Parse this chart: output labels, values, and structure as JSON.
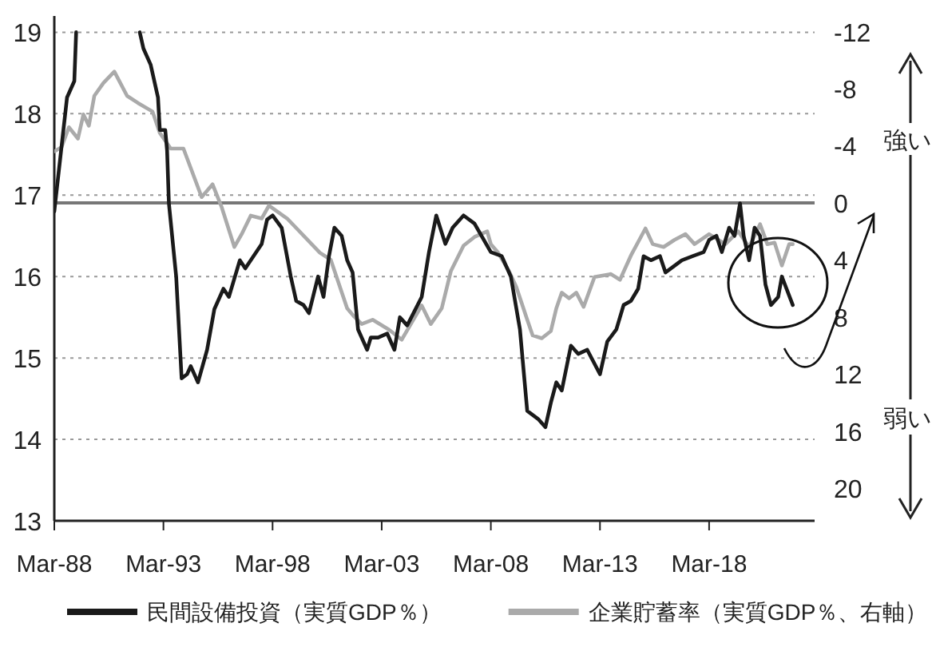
{
  "chart_data": {
    "type": "line",
    "xlim": [
      "1988-03",
      "2023-01"
    ],
    "xticks": [
      {
        "value": "1988-03",
        "label": "Mar-88"
      },
      {
        "value": "1993-03",
        "label": "Mar-93"
      },
      {
        "value": "1998-03",
        "label": "Mar-98"
      },
      {
        "value": "2003-03",
        "label": "Mar-03"
      },
      {
        "value": "2008-03",
        "label": "Mar-08"
      },
      {
        "value": "2013-03",
        "label": "Mar-13"
      },
      {
        "value": "2018-03",
        "label": "Mar-18"
      }
    ],
    "ylim": [
      13,
      19.2
    ],
    "yticks": [
      13,
      14,
      15,
      16,
      17,
      18,
      19
    ],
    "y2lim": [
      22.3,
      -13.1
    ],
    "y2ticks": [
      -12,
      -8,
      -4,
      0,
      4,
      8,
      12,
      16,
      20
    ],
    "grid": "y",
    "legend": "bottom",
    "ref_lines": [
      {
        "axis": "y2",
        "value": 0,
        "color": "#777777"
      }
    ],
    "annotations": [
      "強い",
      "弱い"
    ],
    "series": [
      {
        "name": "民間設備投資（実質GDP％）",
        "color": "#1a1a1a",
        "x": [
          "1988-03",
          "1988-05",
          "1988-10",
          "1989-02",
          "1989-03",
          "1990-06",
          "1992-02",
          "1992-04",
          "1992-08",
          "1992-12",
          "1993-01",
          "1993-04",
          "1993-05",
          "1993-06",
          "1993-10",
          "1994-01",
          "1994-04",
          "1994-06",
          "1994-10",
          "1995-03",
          "1995-07",
          "1995-12",
          "1996-03",
          "1996-09",
          "1996-12",
          "1997-09",
          "1997-12",
          "1998-03",
          "1998-08",
          "1999-01",
          "1999-04",
          "1999-08",
          "1999-11",
          "2000-04",
          "2000-07",
          "2000-10",
          "2001-01",
          "2001-05",
          "2001-08",
          "2001-11",
          "2002-02",
          "2002-07",
          "2002-09",
          "2003-01",
          "2003-06",
          "2003-10",
          "2004-01",
          "2004-05",
          "2005-01",
          "2005-05",
          "2005-09",
          "2006-02",
          "2006-06",
          "2006-12",
          "2007-06",
          "2008-03",
          "2008-09",
          "2009-02",
          "2009-07",
          "2009-11",
          "2010-05",
          "2010-09",
          "2010-12",
          "2011-03",
          "2011-06",
          "2011-11",
          "2012-03",
          "2012-08",
          "2013-03",
          "2013-07",
          "2013-12",
          "2014-04",
          "2014-08",
          "2014-12",
          "2015-03",
          "2015-07",
          "2015-12",
          "2016-03",
          "2016-12",
          "2017-06",
          "2017-12",
          "2018-03",
          "2018-07",
          "2018-10",
          "2019-02",
          "2019-05",
          "2019-08",
          "2019-10",
          "2020-01",
          "2020-04",
          "2020-07",
          "2020-10",
          "2021-01",
          "2021-05",
          "2021-07",
          "2022-01"
        ],
        "values": [
          16.8,
          17.2,
          18.2,
          18.4,
          19.0,
          null,
          19.0,
          18.8,
          18.6,
          18.2,
          17.8,
          17.8,
          17.55,
          16.9,
          16.0,
          14.75,
          14.8,
          14.9,
          14.7,
          15.1,
          15.6,
          15.85,
          15.75,
          16.2,
          16.1,
          16.4,
          16.7,
          16.75,
          16.6,
          16.0,
          15.7,
          15.65,
          15.55,
          16.0,
          15.75,
          16.25,
          16.6,
          16.5,
          16.2,
          16.05,
          15.35,
          15.1,
          15.25,
          15.25,
          15.3,
          15.1,
          15.5,
          15.4,
          15.75,
          16.3,
          16.75,
          16.4,
          16.6,
          16.75,
          16.65,
          16.3,
          16.25,
          16.0,
          15.35,
          14.35,
          14.25,
          14.15,
          14.45,
          14.7,
          14.6,
          15.15,
          15.05,
          15.1,
          14.8,
          15.2,
          15.35,
          15.65,
          15.7,
          15.85,
          16.25,
          16.2,
          16.25,
          16.05,
          16.2,
          16.25,
          16.3,
          16.45,
          16.5,
          16.3,
          16.6,
          16.5,
          16.9,
          16.5,
          16.2,
          16.6,
          16.5,
          15.9,
          15.65,
          15.75,
          16.0,
          15.65
        ]
      },
      {
        "name": "企業貯蓄率（実質GDP％、右軸）",
        "color": "#aaaaaa",
        "axis": "y2",
        "x": [
          "1988-03",
          "1988-07",
          "1988-11",
          "1989-04",
          "1989-07",
          "1989-10",
          "1990-01",
          "1990-06",
          "1990-12",
          "1991-07",
          "1992-01",
          "1992-09",
          "1993-01",
          "1993-07",
          "1994-02",
          "1994-12",
          "1995-06",
          "1995-11",
          "1996-06",
          "1996-10",
          "1997-03",
          "1997-09",
          "1998-01",
          "1998-11",
          "2000-05",
          "2000-11",
          "2001-08",
          "2001-12",
          "2002-04",
          "2002-10",
          "2003-07",
          "2004-02",
          "2005-01",
          "2005-06",
          "2005-12",
          "2006-05",
          "2006-12",
          "2007-06",
          "2008-01",
          "2008-03",
          "2008-07",
          "2009-01",
          "2009-05",
          "2009-11",
          "2010-02",
          "2010-07",
          "2010-12",
          "2011-03",
          "2011-06",
          "2011-10",
          "2012-02",
          "2012-06",
          "2012-12",
          "2013-09",
          "2014-02",
          "2014-08",
          "2015-04",
          "2015-08",
          "2016-02",
          "2016-08",
          "2017-02",
          "2017-07",
          "2018-03",
          "2018-12",
          "2019-07",
          "2020-01",
          "2020-07",
          "2020-11",
          "2021-03",
          "2021-07",
          "2021-11",
          "2022-01"
        ],
        "values": [
          -3.6,
          -3.9,
          -5.3,
          -4.5,
          -6.2,
          -5.4,
          -7.5,
          -8.4,
          -9.2,
          -7.5,
          -7.0,
          -6.4,
          -4.9,
          -3.8,
          -3.8,
          -0.4,
          -1.3,
          0.3,
          3.1,
          2.2,
          0.9,
          1.1,
          0.2,
          1.1,
          3.5,
          4.0,
          7.4,
          8.0,
          8.5,
          8.2,
          8.9,
          9.6,
          7.2,
          8.5,
          7.4,
          4.8,
          3.0,
          2.4,
          2.0,
          2.9,
          3.5,
          4.8,
          5.9,
          8.2,
          9.3,
          9.5,
          9.0,
          7.4,
          6.3,
          6.7,
          6.3,
          7.3,
          5.2,
          5.0,
          5.4,
          3.7,
          1.8,
          2.9,
          3.1,
          2.6,
          2.2,
          2.9,
          2.2,
          2.9,
          2.0,
          3.1,
          1.5,
          2.9,
          2.8,
          4.4,
          2.9,
          2.9
        ]
      }
    ]
  }
}
